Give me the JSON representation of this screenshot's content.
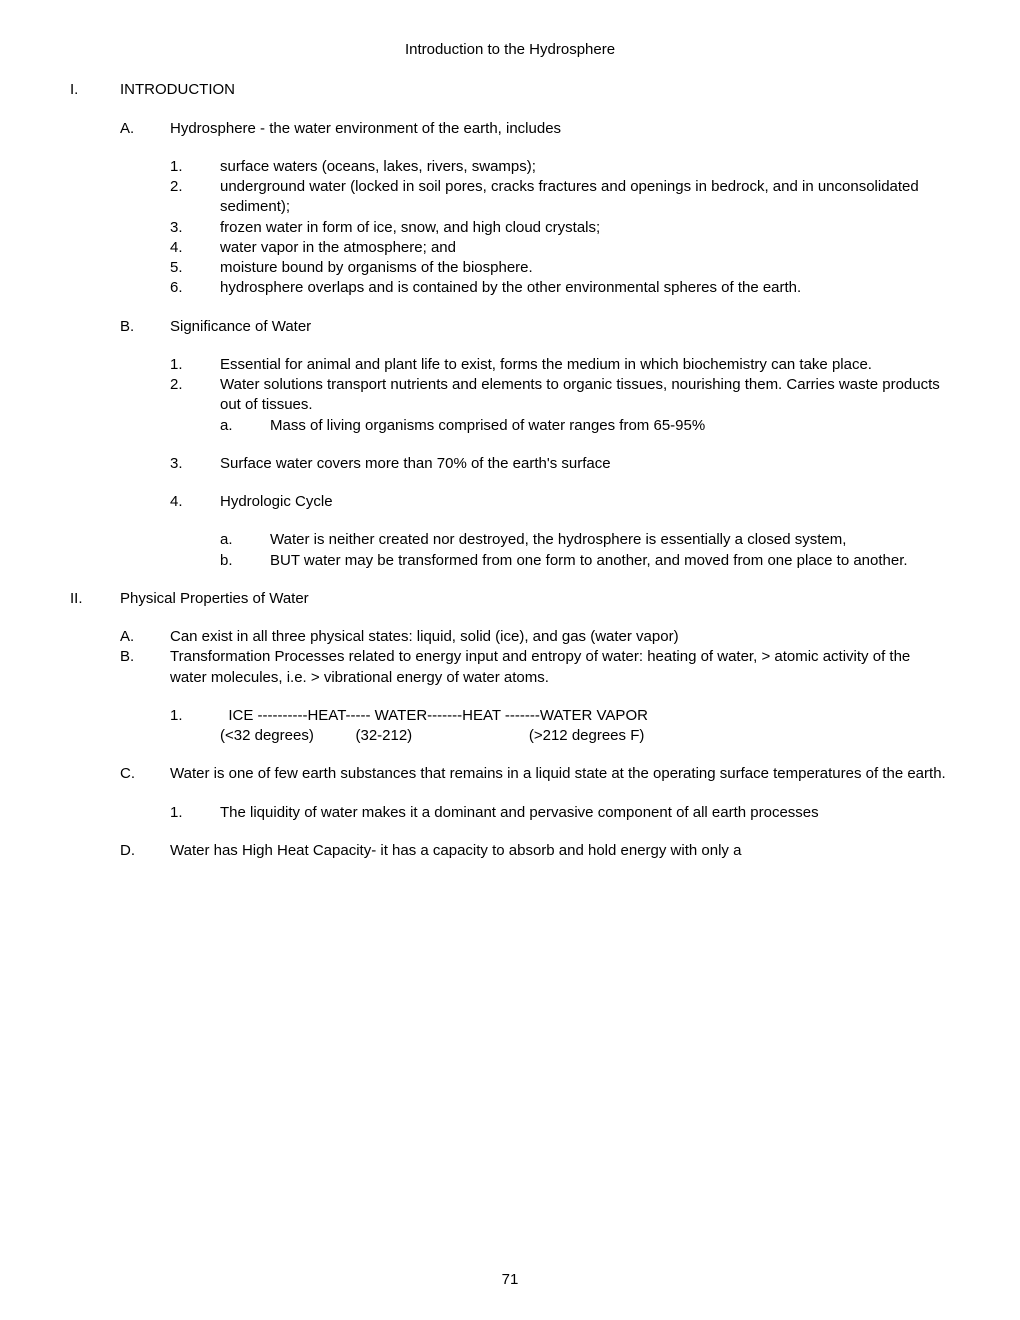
{
  "title": "Introduction to the Hydrosphere",
  "pageNumber": "71",
  "sections": {
    "I": {
      "marker": "I.",
      "label": "INTRODUCTION",
      "A": {
        "marker": "A.",
        "label": "Hydrosphere - the water environment of the earth, includes",
        "items": [
          {
            "m": "1.",
            "t": "surface waters (oceans, lakes, rivers, swamps);"
          },
          {
            "m": "2.",
            "t": "underground water (locked in soil pores, cracks  fractures and openings in bedrock, and in  unconsolidated sediment);"
          },
          {
            "m": "3.",
            "t": "frozen water in form of ice, snow, and high cloud  crystals;"
          },
          {
            "m": "4.",
            "t": "water vapor in the atmosphere; and"
          },
          {
            "m": "5.",
            "t": "moisture bound by organisms of the biosphere."
          },
          {
            "m": "6.",
            "t": "hydrosphere overlaps and is contained by the  other environmental spheres of the earth."
          }
        ]
      },
      "B": {
        "marker": "B.",
        "label": "Significance of Water",
        "item1": {
          "m": "1.",
          "t": "Essential for animal and plant life to exist, forms  the medium in which biochemistry can take place."
        },
        "item2": {
          "m": "2.",
          "t": "Water solutions transport nutrients and elements  to organic tissues, nourishing them.  Carries  waste products out of tissues."
        },
        "item2a": {
          "m": "a.",
          "t": "Mass of living organisms comprised of water   ranges from 65-95%"
        },
        "item3": {
          "m": "3.",
          "t": "Surface water covers more than 70% of the earth's  surface"
        },
        "item4": {
          "m": "4.",
          "t": "Hydrologic Cycle"
        },
        "item4a": {
          "m": "a.",
          "t": "Water is neither created nor destroyed, the  hydrosphere is essentially a closed system,"
        },
        "item4b": {
          "m": "b.",
          "t": "BUT  water may be transformed from one form to another,  and moved from one place to another."
        }
      }
    },
    "II": {
      "marker": "II.",
      "label": "Physical Properties of Water",
      "A": {
        "m": "A.",
        "t": "Can exist in all three physical states: liquid,  solid (ice), and gas (water vapor)"
      },
      "B": {
        "m": "B.",
        "t": "Transformation Processes related to energy input and  entropy of water: heating of water, > atomic  activity of the water molecules, i.e. >  vibrational energy of water atoms."
      },
      "B1": {
        "m": "1.",
        "line1": "  ICE ----------HEAT----- WATER-------HEAT -------WATER VAPOR",
        "line2": "(<32 degrees)          (32-212)                            (>212 degrees F)"
      },
      "C": {
        "m": "C.",
        "t": "Water is one of few earth substances that remains in a liquid state at the operating surface  temperatures of the earth."
      },
      "C1": {
        "m": "1.",
        "t": " The liquidity of water makes it a dominant and  pervasive component of all earth processes"
      },
      "D": {
        "m": "D.",
        "t": "Water has High Heat Capacity- it has a capacity to absorb and hold energy with only a"
      }
    }
  }
}
